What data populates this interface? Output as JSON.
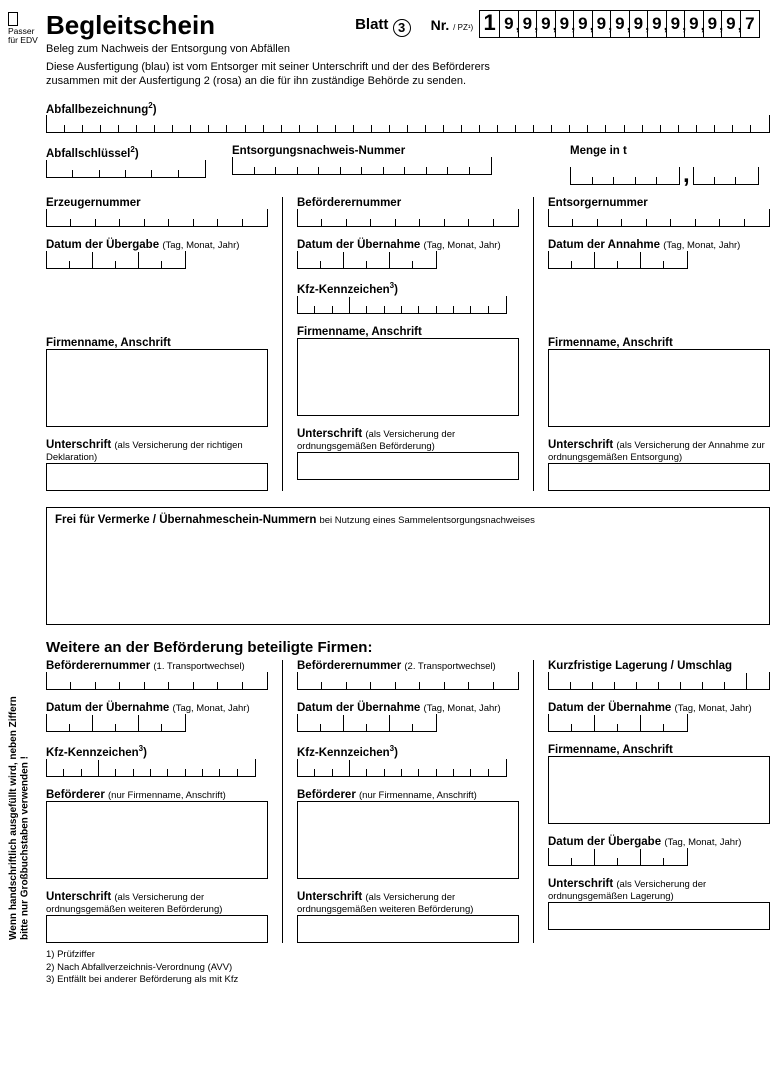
{
  "passer": "Passer für EDV",
  "title": "Begleitschein",
  "blatt_label": "Blatt",
  "blatt_num": "3",
  "nr_label": "Nr.",
  "pz_label": "/ PZ¹)",
  "nr_digits": [
    "1",
    "9",
    "9",
    "9",
    "9",
    "9",
    "9",
    "9",
    "9",
    "9",
    "9",
    "9",
    "9",
    "9",
    "7"
  ],
  "subtitle": "Beleg zum Nachweis der Entsorgung von Abfällen",
  "instructions": "Diese Ausfertigung (blau) ist vom Entsorger mit seiner Unterschrift und der des Beförderers zusammen mit der Ausfertigung 2 (rosa) an die für ihn zuständige Behörde zu senden.",
  "side_text": "Wenn handschriftlich ausgefüllt wird, neben Ziffern bitte nur Großbuchstaben verwenden !",
  "labels": {
    "abfallbez": "Abfallbezeichnung",
    "abfallschl": "Abfallschlüssel",
    "entsnachweis": "Entsorgungsnachweis-Nummer",
    "menge": "Menge in t",
    "erzeugernr": "Erzeugernummer",
    "befoerderernr": "Beförderernummer",
    "entsorgernr": "Entsorgernummer",
    "datum_uebergabe": "Datum der Übergabe",
    "datum_uebernahme": "Datum der Übernahme",
    "datum_annahme": "Datum der Annahme",
    "tmj": "(Tag, Monat, Jahr)",
    "kfz": "Kfz-Kennzeichen",
    "firma": "Firmenname, Anschrift",
    "unterschrift": "Unterschrift",
    "u_deklaration": "(als Versicherung der richtigen Deklaration)",
    "u_befoerderung": "(als Versicherung der ordnungsgemäßen Beförderung)",
    "u_annahme": "(als Versicherung der Annahme zur ordnungsgemäßen Entsorgung)",
    "vermerke": "Frei für Vermerke / Übernahmeschein-Nummern",
    "vermerke_sub": "bei Nutzung eines Sammelentsorgungsnachweises",
    "weitere": "Weitere an der Beförderung beteiligte Firmen:",
    "tw1": "(1. Transportwechsel)",
    "tw2": "(2. Transportwechsel)",
    "kurzlager": "Kurzfristige Lagerung / Umschlag",
    "befoerderer": "Beförderer",
    "nur_firma": "(nur Firmenname, Anschrift)",
    "u_weitere_bef": "(als Versicherung der ordnungsgemäßen weiteren Beförderung)",
    "u_lagerung": "(als Versicherung der ordnungsgemäßen Lagerung)"
  },
  "footnotes": {
    "f1": "1)  Prüfziffer",
    "f2": "2)  Nach Abfallverzeichnis-Verordnung (AVV)",
    "f3": "3)  Entfällt bei anderer Beförderung als mit Kfz"
  },
  "field_cells": {
    "abfallbez": 40,
    "abfallschl": 6,
    "entsnachweis": 12,
    "menge_int": 5,
    "menge_dec": 3,
    "party_nr": 9,
    "date": 6,
    "kfz": 12,
    "storage": 10
  },
  "colors": {
    "ink": "#000000",
    "bg": "#ffffff"
  }
}
